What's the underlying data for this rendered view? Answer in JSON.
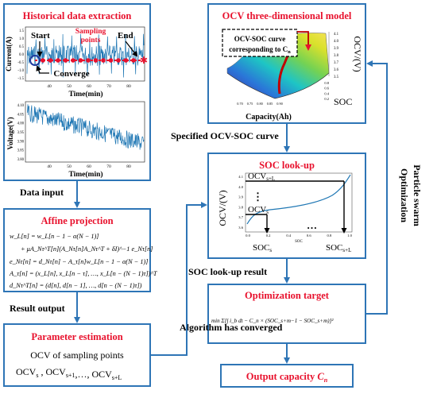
{
  "colors": {
    "box_border": "#2e75b6",
    "title_red": "#e8112d",
    "arrow": "#2e75b6",
    "current_signal": "#1f77b4",
    "marker_red": "#e8112d"
  },
  "extraction": {
    "title": "Historical data extraction",
    "start_label": "Start",
    "sampling_label": "Sampling\npoints",
    "end_label": "End",
    "converge_label": "Converge",
    "current_ylabel": "Current(A)",
    "time_label": "Time(min)",
    "voltage_ylabel": "Voltage(V)",
    "current_ticks": [
      "1.5",
      "1.0",
      "0.5",
      "0.0",
      "-0.5",
      "-1.0",
      "-1.5"
    ],
    "voltage_ticks": [
      "4.10",
      "4.05",
      "4.00",
      "3.95",
      "3.90",
      "3.85",
      "3.80"
    ],
    "time_ticks": [
      "40",
      "50",
      "60",
      "70",
      "80"
    ]
  },
  "ocv_model": {
    "title": "OCV three-dimensional model",
    "note_line1": "OCV-SOC curve",
    "note_line2": "corresponding to C",
    "note_sub": "n",
    "zlabel": "OCV/(V)",
    "xlabel": "Capacity(Ah)",
    "ylabel": "SOC",
    "z_ticks": [
      "4.1",
      "4.0",
      "3.9",
      "3.8",
      "3.7",
      "3.6",
      "3.5"
    ],
    "x_ticks": [
      "0.70",
      "0.75",
      "0.80",
      "0.85",
      "0.90"
    ],
    "y_ticks": [
      "0.8",
      "0.6",
      "0.4",
      "0.2"
    ]
  },
  "specified_curve_label": "Specified OCV-SOC curve",
  "lookup": {
    "title": "SOC look-up",
    "ylabel": "OCV/(V)",
    "ocv_top_main": "OCV",
    "ocv_top_sub": "s+L",
    "ocv_bottom_main": "OCV",
    "ocv_bottom_sub": "s",
    "soc_left_main": "SOC",
    "soc_left_sub": "s",
    "soc_right_main": "SOC",
    "soc_right_sub": "s+L",
    "vdots": "⋮",
    "hdots": "…",
    "x_ticks": [
      "0.0",
      "0.2",
      "0.4",
      "0.6",
      "0.8",
      "1.0"
    ],
    "x_axis_name": "SOC",
    "y_ticks": [
      "4.1",
      "4.0",
      "3.9",
      "3.8",
      "3.7",
      "3.6"
    ]
  },
  "pso_label": "Particle swarm\nOptimization",
  "data_input_label": "Data input",
  "affine": {
    "title": "Affine projection",
    "eq1": "w_L[n] = w_L[n − 1 − α(N − 1)]",
    "eq2": "+ μA_Nτ^T[n](A_Nτ[n]A_Nτ^T + δI)^−1 e_Nτ[n]",
    "eq3": "e_Nτ[n] = d_Nτ[n] − A_τ[n]w_L[n − 1 − α(N − 1)]",
    "eq4": "A_τ[n] = (x_L[n], x_L[n − τ], …, x_L[n − (N − 1)τ])^T",
    "eq5": "d_Nτ^T[n] = (d[n], d[n − 1], …, d[n − (N − 1)τ])"
  },
  "result_output_label": "Result output",
  "parameter": {
    "title": "Parameter estimation",
    "line1": "OCV of sampling points",
    "ocv_a": "OCV",
    "ocv_a_sub": "s",
    "ocv_b": "OCV",
    "ocv_b_sub": "s+1",
    "ocv_c": "OCV",
    "ocv_c_sub": "s+L",
    "sep": ",",
    "ellipsis": "…"
  },
  "lookup_result_label": "SOC look-up result",
  "optimization": {
    "title": "Optimization target",
    "formula": "min Σ[∫ i_b dt − C_n × (SOC_s+m−1 − SOC_s+m)]²"
  },
  "converged_label": "Algorithm has converged",
  "output": {
    "title": "Output capacity",
    "cn": "C",
    "cn_sub": "n"
  }
}
